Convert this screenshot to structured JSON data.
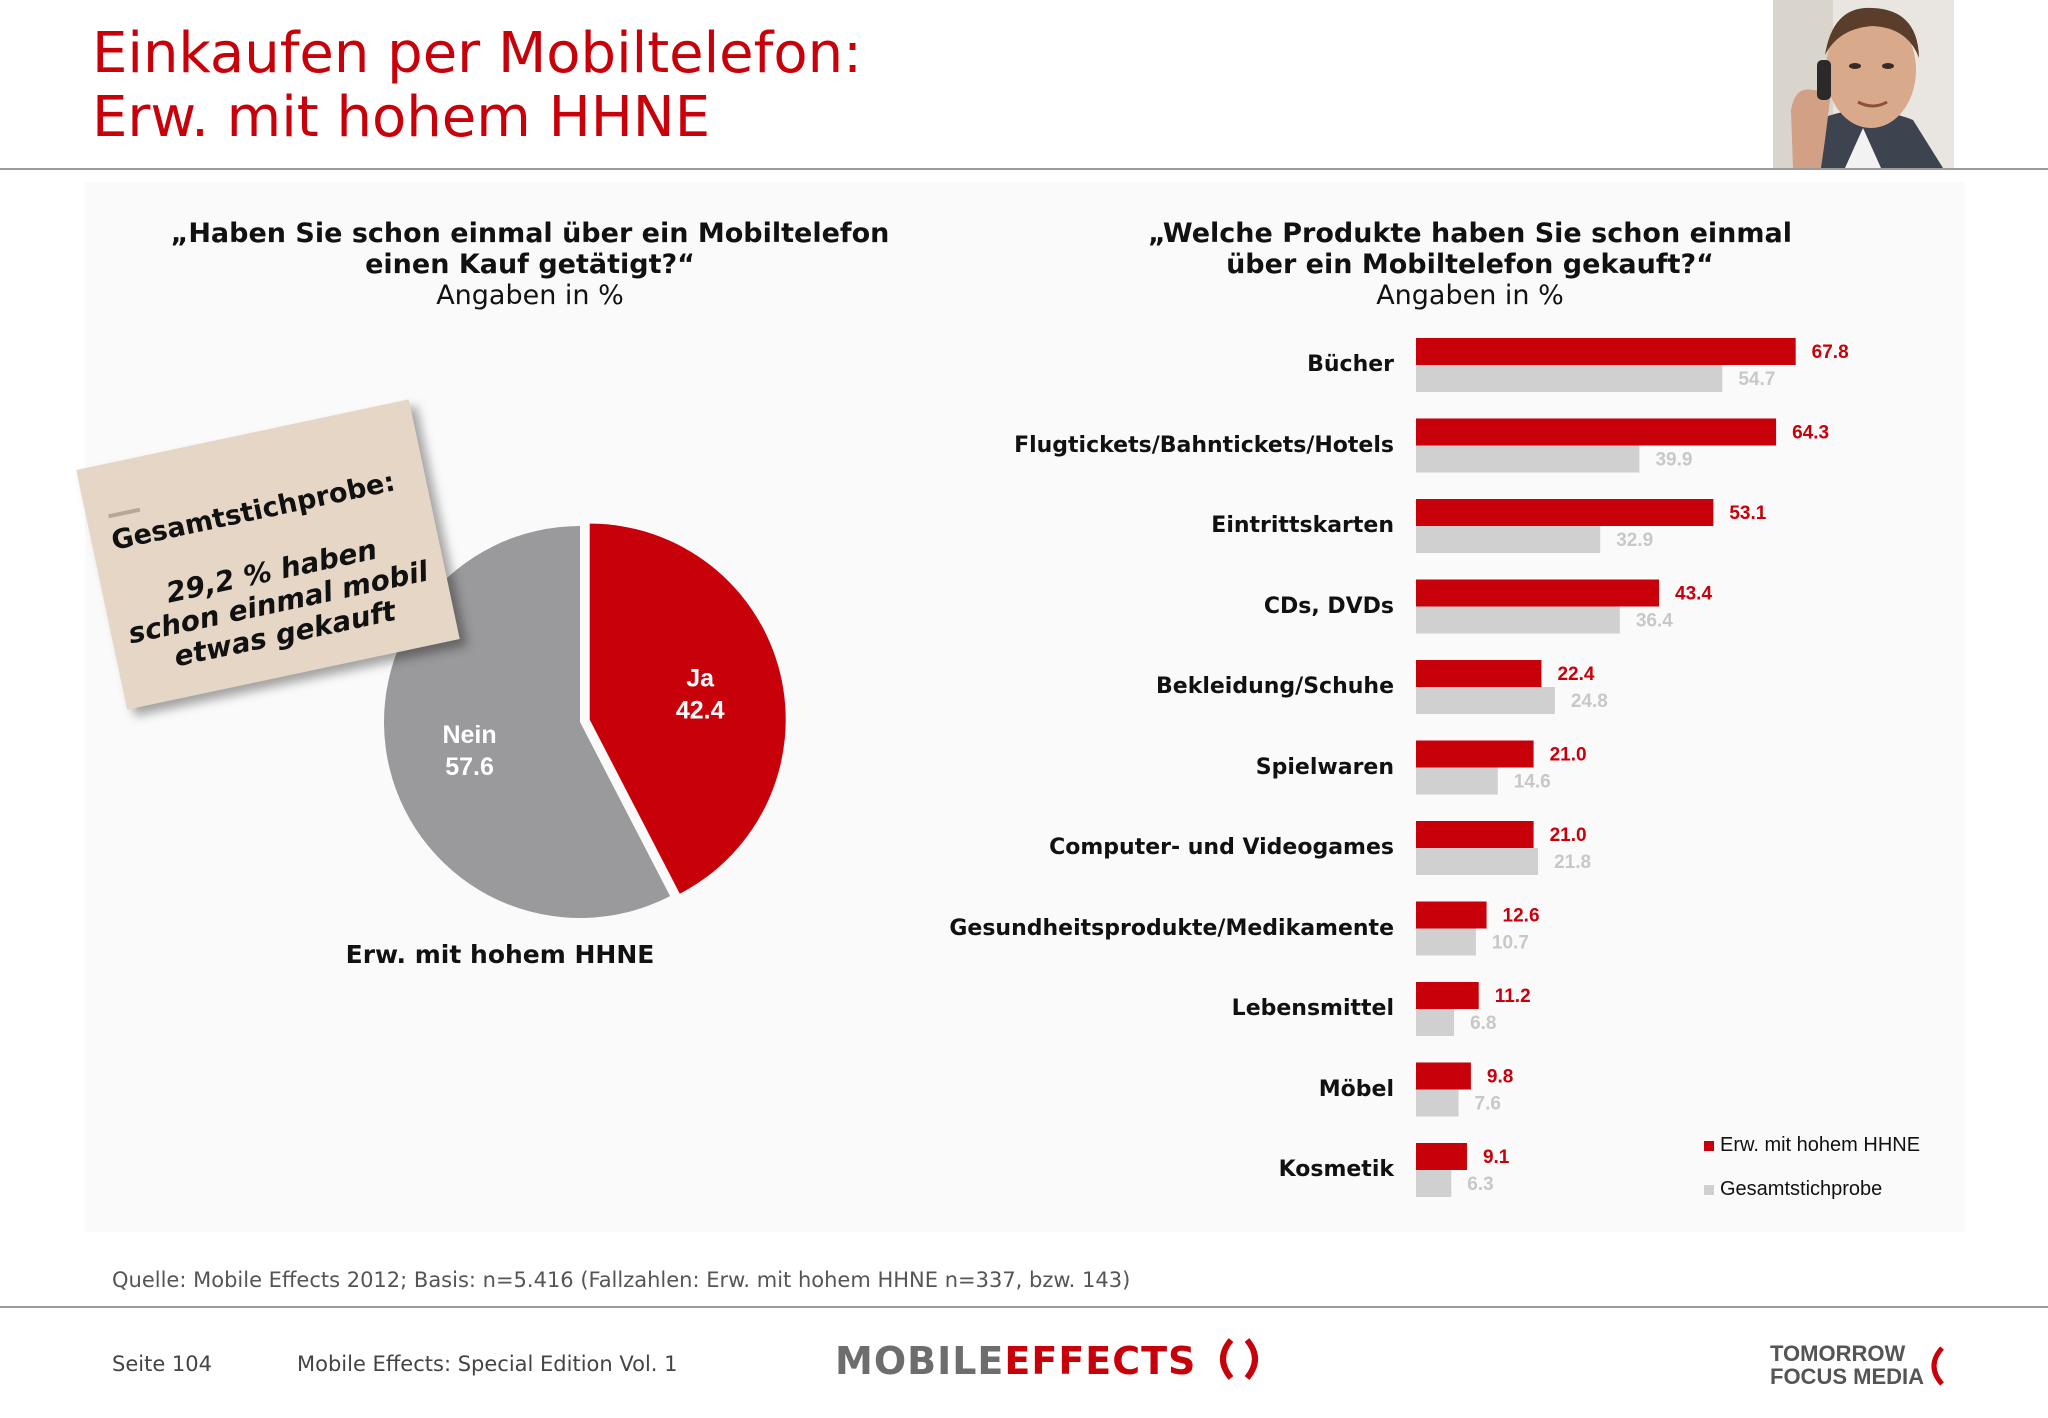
{
  "title": {
    "line1": "Einkaufen per Mobiltelefon:",
    "line2": "Erw. mit hohem HHNE"
  },
  "colors": {
    "accent": "#c8000a",
    "gray_series": "#d0d0d0",
    "pie_gray": "#9a999b"
  },
  "left_chart_question": {
    "line1": "„Haben Sie schon einmal über ein Mobiltelefon",
    "line2": "einen Kauf getätigt?“",
    "unit": "Angaben in %"
  },
  "right_chart_question": {
    "line1": "„Welche Produkte haben Sie schon einmal",
    "line2": "über ein Mobiltelefon gekauft?“",
    "unit": "Angaben in %"
  },
  "sticky_note": {
    "heading": "Gesamtstichprobe:",
    "line1": "29,2 % haben",
    "line2": "schon einmal mobil",
    "line3": "etwas gekauft"
  },
  "chart_data": [
    {
      "type": "pie",
      "title": "„Haben Sie schon einmal über ein Mobiltelefon einen Kauf getätigt?“",
      "subtitle": "Angaben in %",
      "caption": "Erw. mit hohem HHNE",
      "slices": [
        {
          "label": "Ja",
          "value": 42.4,
          "display": "42.4",
          "color": "#c8000a"
        },
        {
          "label": "Nein",
          "value": 57.6,
          "display": "57.6",
          "color": "#9a999b"
        }
      ]
    },
    {
      "type": "bar",
      "orientation": "horizontal",
      "title": "„Welche Produkte haben Sie schon einmal über ein Mobiltelefon gekauft?“",
      "subtitle": "Angaben in %",
      "categories": [
        "Bücher",
        "Flugtickets/Bahntickets/Hotels",
        "Eintrittskarten",
        "CDs, DVDs",
        "Bekleidung/Schuhe",
        "Spielwaren",
        "Computer- und Videogames",
        "Gesundheitsprodukte/Medikamente",
        "Lebensmittel",
        "Möbel",
        "Kosmetik"
      ],
      "series": [
        {
          "name": "Erw. mit hohem HHNE",
          "color": "#c8000a",
          "values": [
            67.8,
            64.3,
            53.1,
            43.4,
            22.4,
            21.0,
            21.0,
            12.6,
            11.2,
            9.8,
            9.1
          ],
          "labels": [
            "67.8",
            "64.3",
            "53.1",
            "43.4",
            "22.4",
            "21.0",
            "21.0",
            "12.6",
            "11.2",
            "9.8",
            "9.1"
          ]
        },
        {
          "name": "Gesamtstichprobe",
          "color": "#d0d0d0",
          "values": [
            54.7,
            39.9,
            32.9,
            36.4,
            24.8,
            14.6,
            21.8,
            10.7,
            6.8,
            7.6,
            6.3
          ],
          "labels": [
            "54.7",
            "39.9",
            "32.9",
            "36.4",
            "24.8",
            "14.6",
            "21.8",
            "10.7",
            "6.8",
            "7.6",
            "6.3"
          ]
        }
      ],
      "xlim": [
        0,
        100
      ],
      "grid": false,
      "legend": "bottom-right"
    }
  ],
  "source": "Quelle: Mobile Effects 2012; Basis: n=5.416 (Fallzahlen: Erw. mit hohem HHNE n=337, bzw. 143)",
  "footer": {
    "page": "Seite 104",
    "publication": "Mobile Effects: Special Edition Vol. 1",
    "logo_left_a": "MOBILE",
    "logo_left_b": "EFFECTS",
    "logo_right_line1": "TOMORROW",
    "logo_right_line2": "FOCUS MEDIA"
  }
}
